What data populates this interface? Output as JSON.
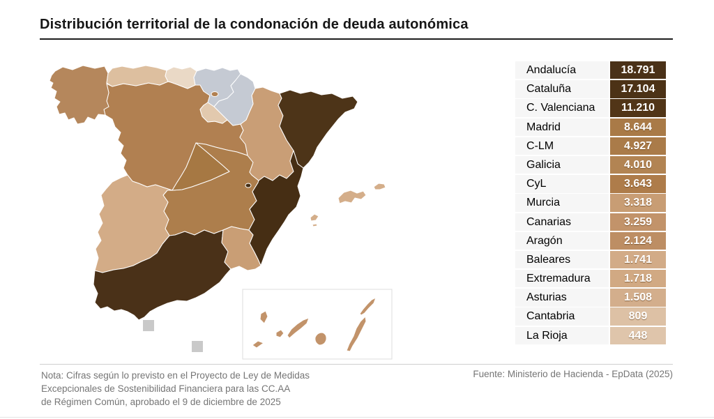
{
  "title": "Distribución territorial de la condonación de deuda autonómica",
  "table": {
    "rows": [
      {
        "label": "Andalucía",
        "value": "18.791",
        "color": "#4a3118"
      },
      {
        "label": "Cataluña",
        "value": "17.104",
        "color": "#4c3216"
      },
      {
        "label": "C. Valenciana",
        "value": "11.210",
        "color": "#513517"
      },
      {
        "label": "Madrid",
        "value": "8.644",
        "color": "#a97a47"
      },
      {
        "label": "C-LM",
        "value": "4.927",
        "color": "#aa7b49"
      },
      {
        "label": "Galicia",
        "value": "4.010",
        "color": "#b28453"
      },
      {
        "label": "CyL",
        "value": "3.643",
        "color": "#ae7c4a"
      },
      {
        "label": "Murcia",
        "value": "3.318",
        "color": "#c89d74"
      },
      {
        "label": "Canarias",
        "value": "3.259",
        "color": "#c2936a"
      },
      {
        "label": "Aragón",
        "value": "2.124",
        "color": "#bd8e64"
      },
      {
        "label": "Baleares",
        "value": "1.741",
        "color": "#d2ab87"
      },
      {
        "label": "Extremadura",
        "value": "1.718",
        "color": "#d1a983"
      },
      {
        "label": "Asturias",
        "value": "1.508",
        "color": "#d3ae8c"
      },
      {
        "label": "Cantabria",
        "value": "809",
        "color": "#ddc1a5"
      },
      {
        "label": "La Rioja",
        "value": "448",
        "color": "#dfc5ab"
      }
    ]
  },
  "map": {
    "stroke": "#ffffff",
    "no_data_color": "#c5cad3",
    "regions": {
      "galicia": {
        "name": "Galicia",
        "color": "#b5875c"
      },
      "asturias": {
        "name": "Asturias",
        "color": "#ddbf9f"
      },
      "cantabria": {
        "name": "Cantabria",
        "color": "#ead9c6"
      },
      "pais-vasco": {
        "name": "País Vasco",
        "color": "#c5cad3"
      },
      "navarra": {
        "name": "Navarra",
        "color": "#c5cad3"
      },
      "la-rioja": {
        "name": "La Rioja",
        "color": "#e2c9ae"
      },
      "castilla-y-leon": {
        "name": "Castilla y León",
        "color": "#b18051"
      },
      "aragon": {
        "name": "Aragón",
        "color": "#c99e76"
      },
      "cataluna": {
        "name": "Cataluña",
        "color": "#4d3418"
      },
      "madrid": {
        "name": "Madrid",
        "color": "#a67843"
      },
      "castilla-la-mancha": {
        "name": "Castilla-La Mancha",
        "color": "#ad7e4c"
      },
      "extremadura": {
        "name": "Extremadura",
        "color": "#d3ac87"
      },
      "c-valenciana": {
        "name": "C. Valenciana",
        "color": "#462e14"
      },
      "murcia": {
        "name": "Murcia",
        "color": "#c99e75"
      },
      "andalucia": {
        "name": "Andalucía",
        "color": "#4a3118"
      },
      "baleares": {
        "name": "Baleares",
        "color": "#d4ae8a"
      },
      "canarias": {
        "name": "Canarias",
        "color": "#c2936a"
      },
      "ceuta": {
        "name": "Ceuta",
        "color": "#c9c9c9"
      },
      "melilla": {
        "name": "Melilla",
        "color": "#c9c9c9"
      }
    }
  },
  "footer": {
    "note_lines": [
      "Nota: Cifras según lo previsto en el Proyecto de Ley de Medidas",
      "Excepcionales de Sostenibilidad Financiera para las CC.AA",
      "de Régimen Común, aprobado el 9 de diciembre de 2025"
    ],
    "source": "Fuente: Ministerio de Hacienda - EpData (2025)"
  },
  "chart_data": {
    "type": "table",
    "map_type": "choropleth",
    "title": "Distribución territorial de la condonación de deuda autonómica",
    "categories": [
      "Andalucía",
      "Cataluña",
      "C. Valenciana",
      "Madrid",
      "C-LM",
      "Galicia",
      "CyL",
      "Murcia",
      "Canarias",
      "Aragón",
      "Baleares",
      "Extremadura",
      "Asturias",
      "Cantabria",
      "La Rioja"
    ],
    "values": [
      18791,
      17104,
      11210,
      8644,
      4927,
      4010,
      3643,
      3318,
      3259,
      2124,
      1741,
      1718,
      1508,
      809,
      448
    ],
    "value_labels": [
      "18.791",
      "17.104",
      "11.210",
      "8.644",
      "4.927",
      "4.010",
      "3.643",
      "3.318",
      "3.259",
      "2.124",
      "1.741",
      "1.718",
      "1.508",
      "809",
      "448"
    ],
    "regions_without_value": [
      "País Vasco",
      "Navarra"
    ],
    "note": "Nota: Cifras según lo previsto en el Proyecto de Ley de Medidas Excepcionales de Sostenibilidad Financiera para las CC.AA de Régimen Común, aprobado el 9 de diciembre de 2025",
    "source": "Fuente: Ministerio de Hacienda - EpData (2025)"
  }
}
